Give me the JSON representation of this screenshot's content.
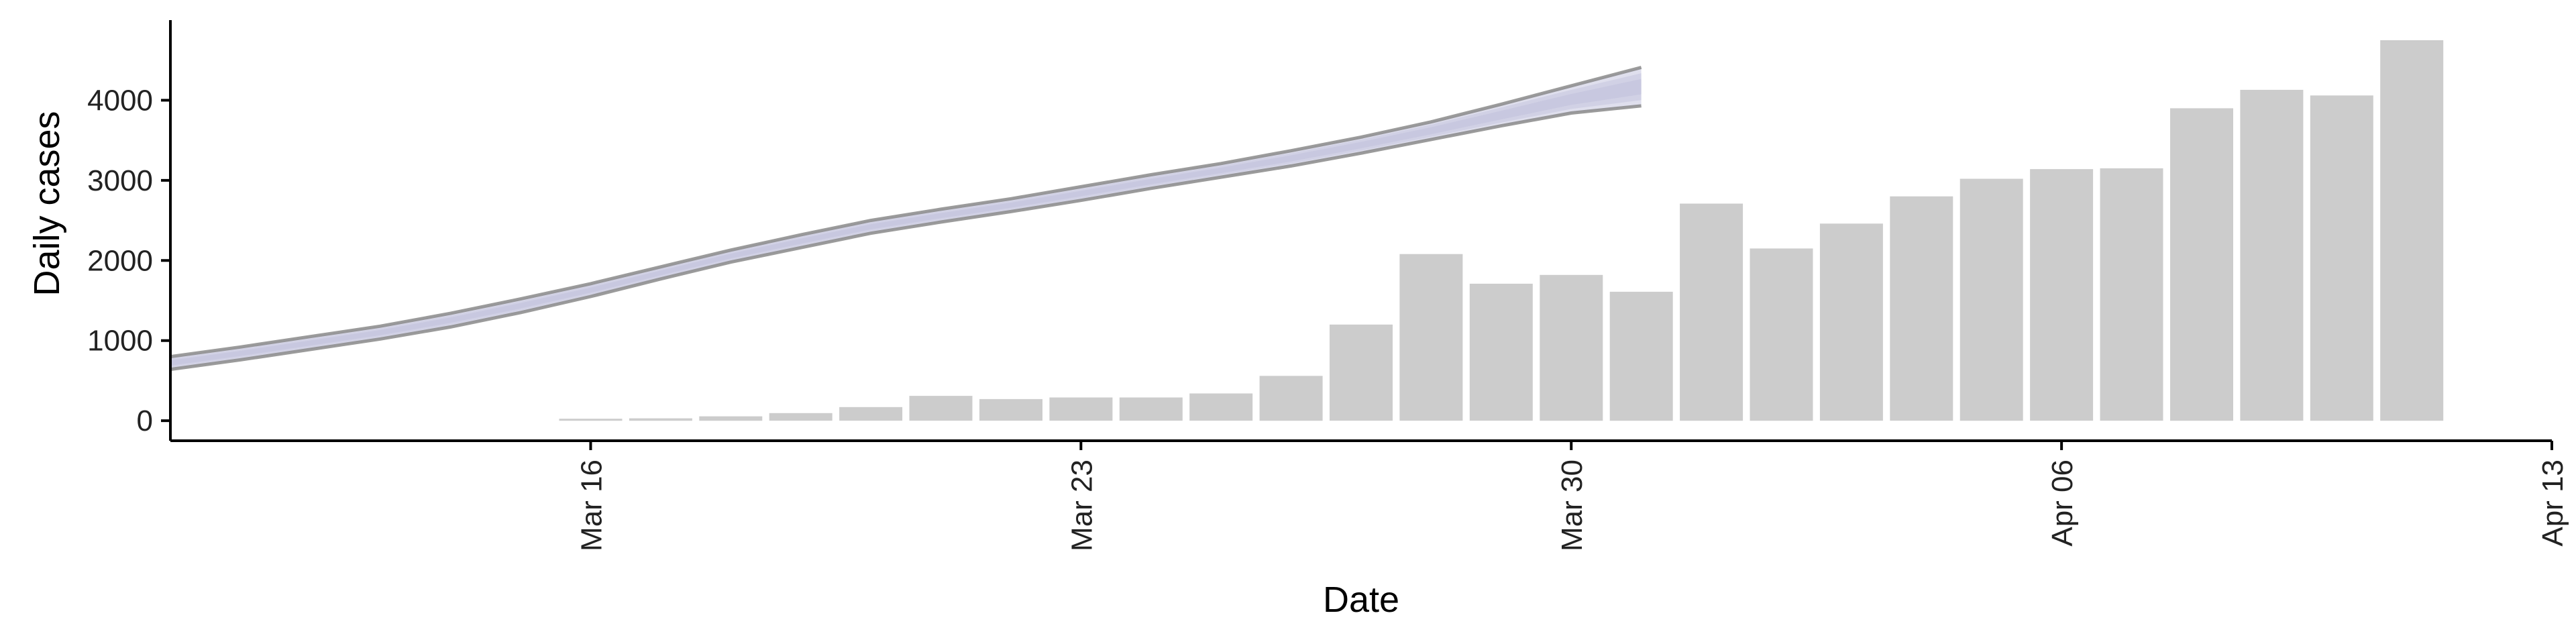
{
  "chart_data": {
    "type": "bar",
    "xlabel": "Date",
    "ylabel": "Daily cases",
    "x_axis": {
      "type": "date",
      "min": "2020-03-10",
      "max": "2020-04-13",
      "ticks": [
        {
          "date": "2020-03-16",
          "label": "Mar 16"
        },
        {
          "date": "2020-03-23",
          "label": "Mar 23"
        },
        {
          "date": "2020-03-30",
          "label": "Mar 30"
        },
        {
          "date": "2020-04-06",
          "label": "Apr 06"
        },
        {
          "date": "2020-04-13",
          "label": "Apr 13"
        }
      ]
    },
    "y_axis": {
      "min": -250,
      "max": 5000,
      "ticks": [
        0,
        1000,
        2000,
        3000,
        4000
      ]
    },
    "grid": false,
    "legend": "none",
    "bars": {
      "color": "#cccccc",
      "data": [
        {
          "date": "2020-03-16",
          "value": 25
        },
        {
          "date": "2020-03-17",
          "value": 30
        },
        {
          "date": "2020-03-18",
          "value": 55
        },
        {
          "date": "2020-03-19",
          "value": 95
        },
        {
          "date": "2020-03-20",
          "value": 170
        },
        {
          "date": "2020-03-21",
          "value": 310
        },
        {
          "date": "2020-03-22",
          "value": 270
        },
        {
          "date": "2020-03-23",
          "value": 290
        },
        {
          "date": "2020-03-24",
          "value": 290
        },
        {
          "date": "2020-03-25",
          "value": 340
        },
        {
          "date": "2020-03-26",
          "value": 560
        },
        {
          "date": "2020-03-27",
          "value": 1200
        },
        {
          "date": "2020-03-28",
          "value": 2080
        },
        {
          "date": "2020-03-29",
          "value": 1710
        },
        {
          "date": "2020-03-30",
          "value": 1820
        },
        {
          "date": "2020-03-31",
          "value": 1610
        },
        {
          "date": "2020-04-01",
          "value": 2710
        },
        {
          "date": "2020-04-02",
          "value": 2150
        },
        {
          "date": "2020-04-03",
          "value": 2460
        },
        {
          "date": "2020-04-04",
          "value": 2800
        },
        {
          "date": "2020-04-05",
          "value": 3020
        },
        {
          "date": "2020-04-06",
          "value": 3140
        },
        {
          "date": "2020-04-07",
          "value": 3150
        },
        {
          "date": "2020-04-08",
          "value": 3900
        },
        {
          "date": "2020-04-09",
          "value": 4130
        },
        {
          "date": "2020-04-10",
          "value": 4060
        },
        {
          "date": "2020-04-11",
          "value": 4750
        }
      ]
    },
    "band": {
      "color": "#b8b8d6",
      "edge_color": "#8a8a8a",
      "data": [
        {
          "date": "2020-03-10",
          "lower": 640,
          "upper": 800
        },
        {
          "date": "2020-03-11",
          "lower": 760,
          "upper": 920
        },
        {
          "date": "2020-03-12",
          "lower": 890,
          "upper": 1050
        },
        {
          "date": "2020-03-13",
          "lower": 1020,
          "upper": 1180
        },
        {
          "date": "2020-03-14",
          "lower": 1170,
          "upper": 1340
        },
        {
          "date": "2020-03-15",
          "lower": 1350,
          "upper": 1520
        },
        {
          "date": "2020-03-16",
          "lower": 1550,
          "upper": 1710
        },
        {
          "date": "2020-03-17",
          "lower": 1770,
          "upper": 1920
        },
        {
          "date": "2020-03-18",
          "lower": 1980,
          "upper": 2130
        },
        {
          "date": "2020-03-19",
          "lower": 2160,
          "upper": 2320
        },
        {
          "date": "2020-03-20",
          "lower": 2340,
          "upper": 2500
        },
        {
          "date": "2020-03-21",
          "lower": 2480,
          "upper": 2640
        },
        {
          "date": "2020-03-22",
          "lower": 2610,
          "upper": 2770
        },
        {
          "date": "2020-03-23",
          "lower": 2750,
          "upper": 2920
        },
        {
          "date": "2020-03-24",
          "lower": 2900,
          "upper": 3070
        },
        {
          "date": "2020-03-25",
          "lower": 3040,
          "upper": 3210
        },
        {
          "date": "2020-03-26",
          "lower": 3180,
          "upper": 3370
        },
        {
          "date": "2020-03-27",
          "lower": 3340,
          "upper": 3540
        },
        {
          "date": "2020-03-28",
          "lower": 3510,
          "upper": 3730
        },
        {
          "date": "2020-03-29",
          "lower": 3680,
          "upper": 3950
        },
        {
          "date": "2020-03-30",
          "lower": 3840,
          "upper": 4180
        },
        {
          "date": "2020-03-31",
          "lower": 3930,
          "upper": 4410
        }
      ]
    }
  }
}
